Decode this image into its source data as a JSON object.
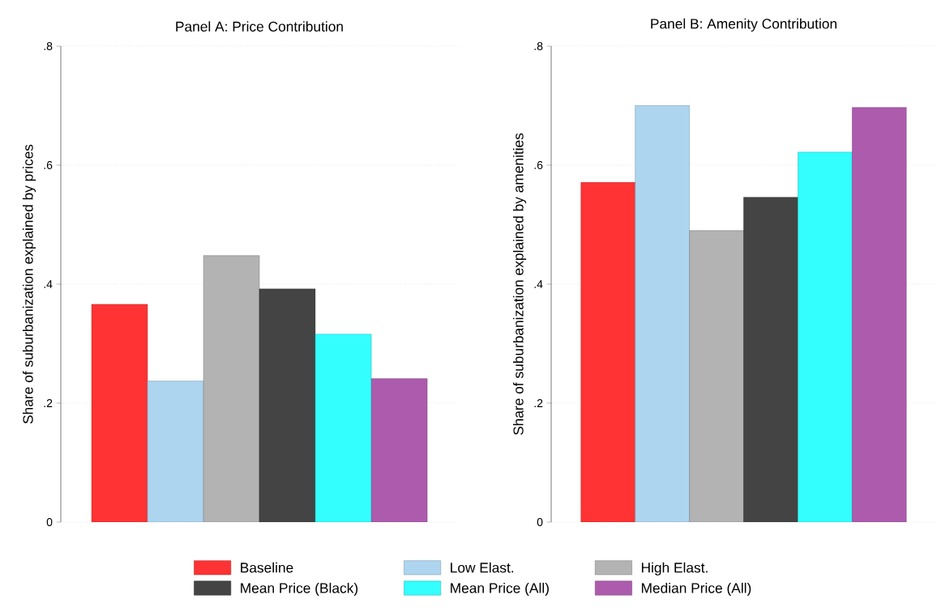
{
  "chart_data": [
    {
      "type": "bar",
      "title": "Panel A: Price Contribution",
      "ylabel": "Share of suburbanization explained by prices",
      "categories": [
        null
      ],
      "ylim": [
        0,
        0.8
      ],
      "yticks": [
        {
          "value": 0,
          "label": "0"
        },
        {
          "value": 0.2,
          "label": ".2"
        },
        {
          "value": 0.4,
          "label": ".4"
        },
        {
          "value": 0.6,
          "label": ".6"
        },
        {
          "value": 0.8,
          "label": ".8"
        }
      ],
      "grid": "y",
      "legend": "bottom",
      "series": [
        {
          "name": "Baseline",
          "color": "#ff3333",
          "values": [
            0.366
          ]
        },
        {
          "name": "Low Elast.",
          "color": "#add5f0",
          "values": [
            0.237
          ]
        },
        {
          "name": "High Elast.",
          "color": "#b3b3b3",
          "values": [
            0.448
          ]
        },
        {
          "name": "Mean Price (Black)",
          "color": "#444444",
          "values": [
            0.392
          ]
        },
        {
          "name": "Mean Price (All)",
          "color": "#33ffff",
          "values": [
            0.316
          ]
        },
        {
          "name": "Median Price (All)",
          "color": "#ad5cad",
          "values": [
            0.241
          ]
        }
      ]
    },
    {
      "type": "bar",
      "title": "Panel B: Amenity Contribution",
      "ylabel": "Share of suburbanization explained by amenities",
      "categories": [
        null
      ],
      "ylim": [
        0,
        0.8
      ],
      "yticks": [
        {
          "value": 0,
          "label": "0"
        },
        {
          "value": 0.2,
          "label": ".2"
        },
        {
          "value": 0.4,
          "label": ".4"
        },
        {
          "value": 0.6,
          "label": ".6"
        },
        {
          "value": 0.8,
          "label": ".8"
        }
      ],
      "grid": "y",
      "series": [
        {
          "color": "#ff3333",
          "values": [
            0.571
          ]
        },
        {
          "color": "#add5f0",
          "values": [
            0.7
          ]
        },
        {
          "color": "#b3b3b3",
          "values": [
            0.49
          ]
        },
        {
          "color": "#444444",
          "values": [
            0.546
          ]
        },
        {
          "color": "#33ffff",
          "values": [
            0.622
          ]
        },
        {
          "color": "#ad5cad",
          "values": [
            0.697
          ]
        }
      ]
    }
  ]
}
